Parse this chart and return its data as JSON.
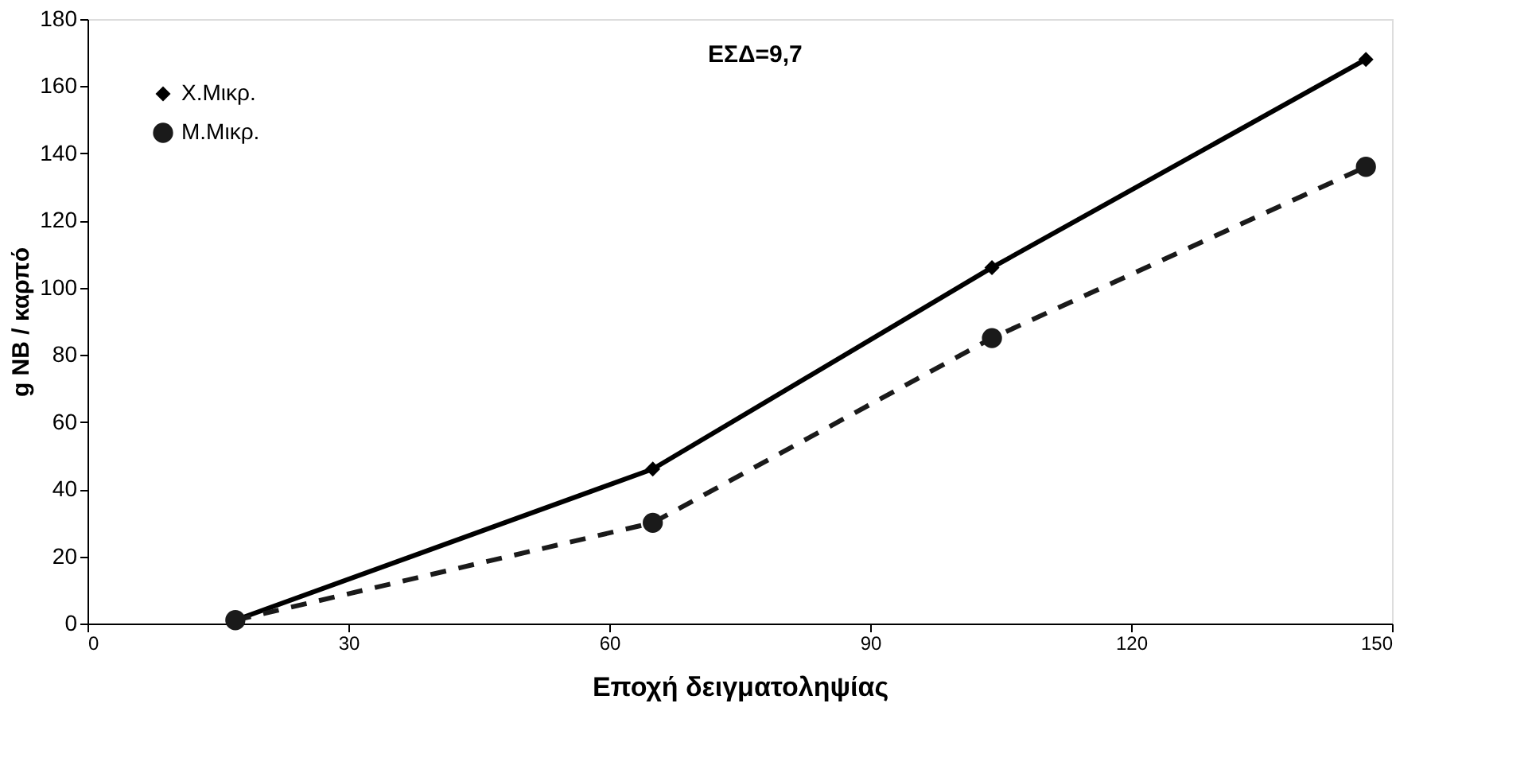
{
  "chart_data": {
    "type": "line",
    "xlabel": "Εποχή δειγματοληψίας",
    "ylabel": "g NB / καρπό",
    "x": [
      17,
      65,
      104,
      147
    ],
    "series": [
      {
        "name": "Χ.Μικρ.",
        "color": "#000000",
        "values": [
          1,
          46,
          106,
          168
        ],
        "marker": "diamond",
        "line_style": "solid"
      },
      {
        "name": "Μ.Μικρ.",
        "color": "#1a1a1a",
        "values": [
          1,
          30,
          85,
          136
        ],
        "marker": "circle",
        "line_style": "dashed"
      }
    ],
    "xlim": [
      0,
      150
    ],
    "xticks": [
      0,
      30,
      60,
      90,
      120,
      150
    ],
    "ylim": [
      0,
      180
    ],
    "yticks": [
      0,
      20,
      40,
      60,
      80,
      100,
      120,
      140,
      160,
      180
    ],
    "annotations": [
      "ΕΣΔ=9,7"
    ],
    "grid": false,
    "legend": "top left"
  }
}
